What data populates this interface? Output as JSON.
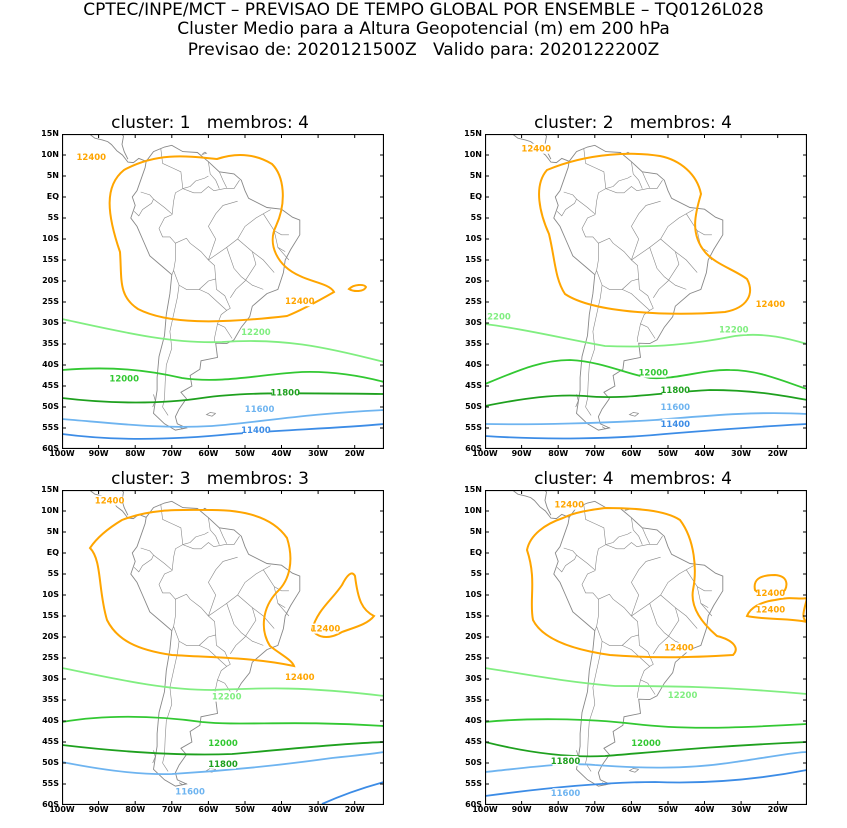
{
  "header": {
    "line1": "CPTEC/INPE/MCT – PREVISAO DE TEMPO GLOBAL POR ENSEMBLE – TQ0126L028",
    "line2": "Cluster Medio para a Altura Geopotencial (m) em 200 hPa",
    "forecast_label": "Previsao de: 2020121500Z",
    "valid_label": "Valido para: 2020122200Z"
  },
  "axes": {
    "lat_ticks": [
      "15N",
      "10N",
      "5N",
      "EQ",
      "5S",
      "10S",
      "15S",
      "20S",
      "25S",
      "30S",
      "35S",
      "40S",
      "45S",
      "50S",
      "55S",
      "60S"
    ],
    "lon_ticks": [
      "100W",
      "90W",
      "80W",
      "70W",
      "60W",
      "50W",
      "40W",
      "30W",
      "20W"
    ],
    "lat_range": [
      -60,
      15
    ],
    "lon_range": [
      -100,
      -12
    ]
  },
  "colors": {
    "c12400": "#ffa500",
    "c12200": "#80ee80",
    "c12000": "#32c832",
    "c11800": "#1ea01e",
    "c11600": "#6eb4f0",
    "c11400": "#3c8ce6",
    "coast": "#888888"
  },
  "panels": [
    {
      "title": "cluster: 1   membros: 4",
      "labels": [
        {
          "text": "12400",
          "lon": -92,
          "lat": 9.5,
          "color": "c12400"
        },
        {
          "text": "12400",
          "lon": -35,
          "lat": -24.8,
          "color": "c12400"
        },
        {
          "text": "12200",
          "lon": -47,
          "lat": -32.2,
          "color": "c12200"
        },
        {
          "text": "12000",
          "lon": -83,
          "lat": -43.2,
          "color": "c12000"
        },
        {
          "text": "11800",
          "lon": -39,
          "lat": -46.5,
          "color": "c11800"
        },
        {
          "text": "11600",
          "lon": -46,
          "lat": -50.5,
          "color": "c11600"
        },
        {
          "text": "11400",
          "lon": -47,
          "lat": -55.5,
          "color": "c11400"
        }
      ]
    },
    {
      "title": "cluster: 2   membros: 4",
      "labels": [
        {
          "text": "12400",
          "lon": -86,
          "lat": 11.5,
          "color": "c12400"
        },
        {
          "text": "12400",
          "lon": -22,
          "lat": -25.5,
          "color": "c12400"
        },
        {
          "text": "12200",
          "lon": -97,
          "lat": -28.5,
          "color": "c12200"
        },
        {
          "text": "12200",
          "lon": -32,
          "lat": -31.5,
          "color": "c12200"
        },
        {
          "text": "12000",
          "lon": -54,
          "lat": -41.8,
          "color": "c12000"
        },
        {
          "text": "11800",
          "lon": -48,
          "lat": -46,
          "color": "c11800"
        },
        {
          "text": "11600",
          "lon": -48,
          "lat": -50,
          "color": "c11600"
        },
        {
          "text": "11400",
          "lon": -48,
          "lat": -54,
          "color": "c11400"
        }
      ]
    },
    {
      "title": "cluster: 3   membros: 3",
      "labels": [
        {
          "text": "12400",
          "lon": -87,
          "lat": 12.5,
          "color": "c12400"
        },
        {
          "text": "12400",
          "lon": -28,
          "lat": -18,
          "color": "c12400"
        },
        {
          "text": "12400",
          "lon": -35,
          "lat": -29.5,
          "color": "c12400"
        },
        {
          "text": "12200",
          "lon": -55,
          "lat": -34.2,
          "color": "c12200"
        },
        {
          "text": "12000",
          "lon": -56,
          "lat": -45.2,
          "color": "c12000"
        },
        {
          "text": "11800",
          "lon": -56,
          "lat": -50.2,
          "color": "c11800"
        },
        {
          "text": "11600",
          "lon": -65,
          "lat": -56.8,
          "color": "c11600"
        }
      ]
    },
    {
      "title": "cluster: 4   membros: 4",
      "labels": [
        {
          "text": "12400",
          "lon": -77,
          "lat": 11.5,
          "color": "c12400"
        },
        {
          "text": "12400",
          "lon": -22,
          "lat": -9.5,
          "color": "c12400"
        },
        {
          "text": "12400",
          "lon": -22,
          "lat": -13.5,
          "color": "c12400"
        },
        {
          "text": "12400",
          "lon": -47,
          "lat": -22.5,
          "color": "c12400"
        },
        {
          "text": "12200",
          "lon": -46,
          "lat": -33.8,
          "color": "c12200"
        },
        {
          "text": "12000",
          "lon": -56,
          "lat": -45.2,
          "color": "c12000"
        },
        {
          "text": "11800",
          "lon": -78,
          "lat": -49.5,
          "color": "c11800"
        },
        {
          "text": "11600",
          "lon": -78,
          "lat": -57.2,
          "color": "c11600"
        }
      ]
    }
  ]
}
